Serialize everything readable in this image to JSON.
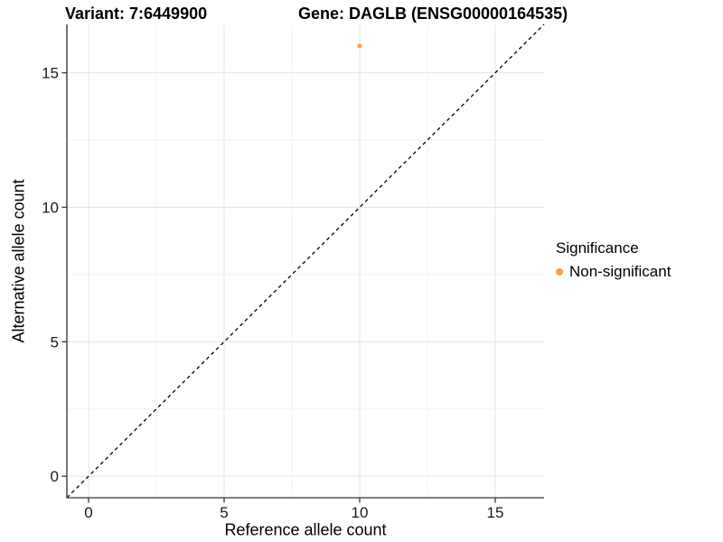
{
  "chart_data": {
    "type": "scatter",
    "title_left": "Variant: 7:6449900",
    "title_right": "Gene: DAGLB (ENSG00000164535)",
    "xlabel": "Reference allele count",
    "ylabel": "Alternative allele count",
    "xlim": [
      -0.8,
      16.8
    ],
    "ylim": [
      -0.8,
      16.8
    ],
    "x_ticks": [
      0,
      5,
      10,
      15
    ],
    "y_ticks": [
      0,
      5,
      10,
      15
    ],
    "x_minor_gridlines": [
      2.5,
      7.5,
      12.5
    ],
    "y_minor_gridlines": [
      2.5,
      7.5,
      12.5
    ],
    "grid": "major+minor",
    "series": [
      {
        "name": "Non-significant",
        "color": "#FAA43A",
        "points": [
          {
            "x": 10,
            "y": 16
          }
        ]
      }
    ],
    "identity_line": {
      "style": "dashed",
      "color": "#000000",
      "from": [
        -0.8,
        -0.8
      ],
      "to": [
        16.8,
        16.8
      ]
    },
    "legend": {
      "title": "Significance",
      "position": "right",
      "items": [
        {
          "label": "Non-significant",
          "color": "#FAA43A",
          "marker": "circle"
        }
      ]
    }
  },
  "colors": {
    "background": "#FFFFFF",
    "axis_line": "#555555",
    "tick": "#333333",
    "grid_major": "#E4E4E4",
    "grid_minor": "#F0F0F0",
    "point": "#FAA43A"
  }
}
